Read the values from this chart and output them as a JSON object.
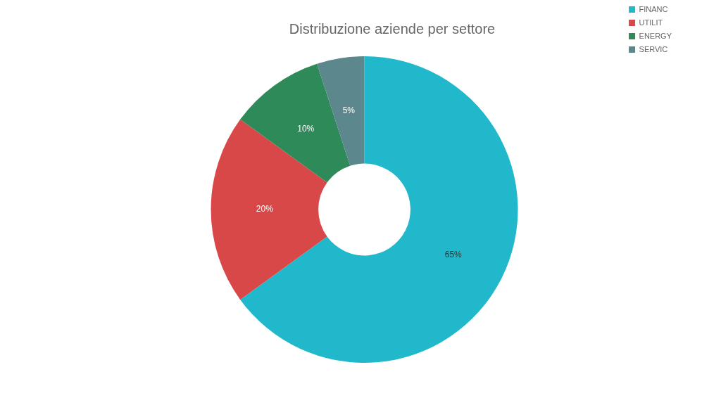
{
  "chart_data": {
    "type": "donut",
    "title": "Distribuzione aziende per settore",
    "categories": [
      "FINANC",
      "UTILIT",
      "ENERGY",
      "SERVIC"
    ],
    "values": [
      65,
      20,
      10,
      5
    ],
    "colors": [
      "#22b8cc",
      "#d94848",
      "#2e8a58",
      "#5b878d"
    ],
    "value_labels": [
      "65%",
      "20%",
      "10%",
      "5%"
    ],
    "legend": "top right"
  }
}
